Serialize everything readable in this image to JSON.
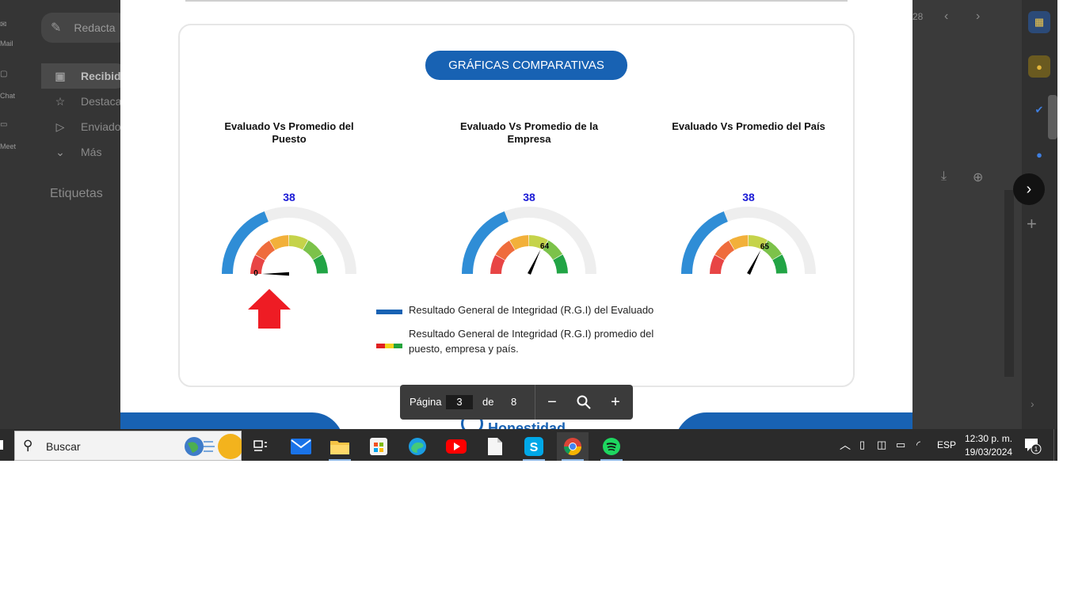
{
  "gmail": {
    "compose_label": "Redacta",
    "rail": {
      "mail_label": "Mail",
      "chat_label": "Chat",
      "meet_label": "Meet"
    },
    "nav": [
      {
        "label": "Recibid",
        "icon": "inbox-icon",
        "active": true
      },
      {
        "label": "Destaca",
        "icon": "star-icon",
        "active": false
      },
      {
        "label": "Enviado",
        "icon": "send-icon",
        "active": false
      },
      {
        "label": "Más",
        "icon": "chevron-down-icon",
        "active": false
      }
    ],
    "labels_heading": "Etiquetas",
    "pagination_text": "28"
  },
  "document": {
    "banner": "GRÁFICAS COMPARATIVAS",
    "gauges": [
      {
        "title": "Evaluado Vs Promedio del Puesto",
        "evaluated_value": "38",
        "average_value": "0"
      },
      {
        "title": "Evaluado Vs Promedio de la Empresa",
        "evaluated_value": "38",
        "average_value": "64"
      },
      {
        "title": "Evaluado Vs Promedio del País",
        "evaluated_value": "38",
        "average_value": "65"
      }
    ],
    "legend": [
      {
        "text": "Resultado General de Integridad (R.G.I) del Evaluado"
      },
      {
        "text": "Resultado General de Integridad (R.G.I) promedio del puesto, empresa y país."
      }
    ],
    "logo_text": "Honestidad"
  },
  "pdf_toolbar": {
    "page_label": "Página",
    "current_page": "3",
    "of_label": "de",
    "total_pages": "8"
  },
  "taskbar": {
    "search_placeholder": "Buscar",
    "apps": [
      {
        "name": "task-view-icon"
      },
      {
        "name": "mail-app-icon"
      },
      {
        "name": "file-explorer-icon"
      },
      {
        "name": "microsoft-store-icon"
      },
      {
        "name": "edge-icon"
      },
      {
        "name": "youtube-icon"
      },
      {
        "name": "file-icon"
      },
      {
        "name": "skype-icon"
      },
      {
        "name": "chrome-icon"
      },
      {
        "name": "spotify-icon"
      }
    ],
    "language": "ESP",
    "time": "12:30 p. m.",
    "date": "19/03/2024",
    "notification_count": "1"
  },
  "colors": {
    "brand_blue": "#1862b3",
    "gauge_blue": "#2f8dd6",
    "value_blue": "#1a1ad6",
    "arrow_red": "#ee1c24"
  }
}
